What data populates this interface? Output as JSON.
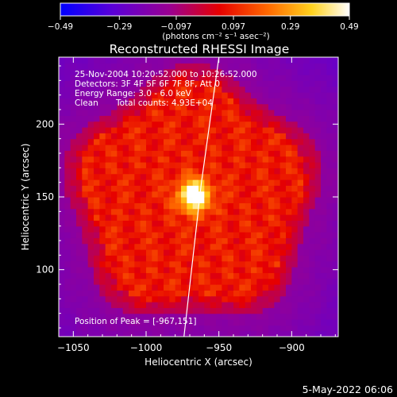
{
  "chart_data": {
    "type": "heatmap",
    "title": "Reconstructed RHESSI Image",
    "xlabel": "Heliocentric X (arcsec)",
    "ylabel": "Heliocentric Y (arcsec)",
    "xlim": [
      -1060,
      -868
    ],
    "ylim": [
      54,
      246
    ],
    "xticks": [
      -1050,
      -1000,
      -950,
      -900
    ],
    "xtick_labels": [
      "−1050",
      "−1000",
      "−950",
      "−900"
    ],
    "yticks": [
      100,
      150,
      200
    ],
    "ytick_labels": [
      "100",
      "150",
      "200"
    ],
    "colorbar": {
      "range": [
        -0.49,
        0.49
      ],
      "ticks": [
        -0.49,
        -0.29,
        -0.097,
        0.097,
        0.29,
        0.49
      ],
      "tick_labels": [
        "−0.49",
        "−0.29",
        "−0.097",
        "0.097",
        "0.29",
        "0.49"
      ],
      "units": "(photons cm⁻² s⁻¹ asec⁻²)",
      "colors": [
        "#0000ff",
        "#5a00d8",
        "#9a0090",
        "#e60000",
        "#ff6a00",
        "#ffd21e",
        "#ffffff"
      ]
    },
    "annotations": {
      "time_range": "25-Nov-2004 10:20:52.000 to 10:26:52.000",
      "detectors": "Detectors: 3F 4F 5F 6F 7F 8F, Att 0",
      "energy": "Energy Range: 3.0 - 6.0 keV",
      "algorithm": "Clean",
      "counts": "Total counts: 4.93E+04",
      "peak_label": "Position of Peak = [-967,151]"
    },
    "peak": {
      "x": -967,
      "y": 151
    },
    "disk_center_x": -968,
    "disk_center_y": 150,
    "disk_radius": 86,
    "limb": [
      [
        -974,
        54
      ],
      [
        -962,
        160
      ],
      [
        -950,
        246
      ]
    ],
    "footer": "5-May-2022 06:06"
  }
}
